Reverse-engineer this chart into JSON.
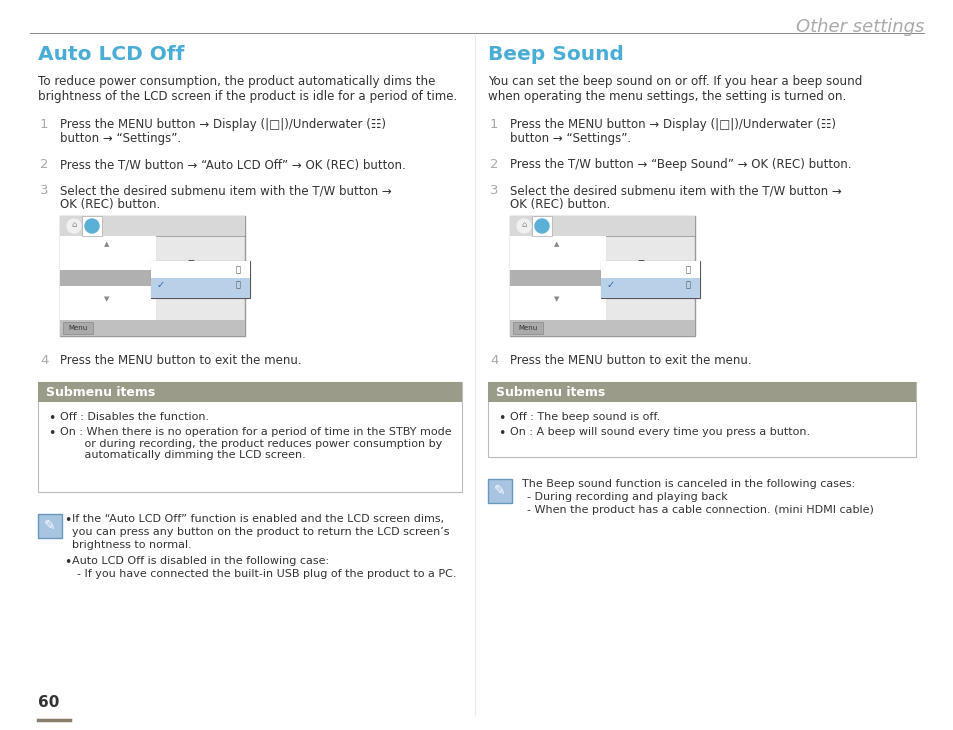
{
  "bg_color": "#ffffff",
  "header_text": "Other settings",
  "header_color": "#aaaaaa",
  "header_line_color": "#333333",
  "page_number": "60",
  "page_num_color": "#333333",
  "bottom_line_color": "#8B7D6B",
  "left_title": "Auto LCD Off",
  "left_title_color": "#4aadd6",
  "left_intro_line1": "To reduce power consumption, the product automatically dims the",
  "left_intro_line2": "brightness of the LCD screen if the product is idle for a period of time.",
  "right_title": "Beep Sound",
  "right_title_color": "#4aadd6",
  "right_intro_line1": "You can set the beep sound on or off. If you hear a beep sound",
  "right_intro_line2": "when operating the menu settings, the setting is turned on.",
  "submenu_header_bg": "#9b9b8a",
  "submenu_border": "#bbbbbb",
  "submenu_header_text_color": "#ffffff",
  "submenu_header_label": "Submenu items",
  "note_icon_bg": "#a8c4e0",
  "note_icon_border": "#6699bb",
  "note_icon_fg": "#4477aa"
}
